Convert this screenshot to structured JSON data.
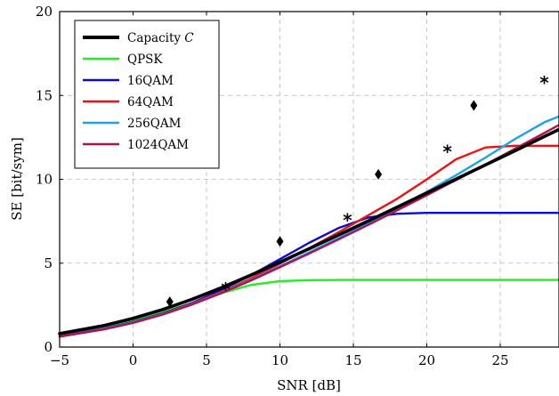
{
  "chart_data": {
    "type": "line",
    "xlabel": "SNR [dB]",
    "ylabel": "SE [bit/sym]",
    "xlim": [
      -5,
      29
    ],
    "ylim": [
      0,
      20
    ],
    "xticks": [
      -5,
      0,
      5,
      10,
      15,
      20,
      25
    ],
    "yticks": [
      0,
      5,
      10,
      15,
      20
    ],
    "grid": true,
    "legend_position": "top-left",
    "series": [
      {
        "name": "Capacity C",
        "color": "#000000",
        "x": [
          -5,
          -2,
          0,
          2,
          4,
          6,
          8,
          10,
          12,
          14,
          16,
          18,
          20,
          22,
          24,
          26,
          28,
          29
        ],
        "y": [
          0.8,
          1.28,
          1.71,
          2.23,
          2.84,
          3.53,
          4.28,
          5.06,
          5.87,
          6.69,
          7.51,
          8.35,
          9.19,
          10.02,
          10.86,
          11.7,
          12.55,
          12.97
        ]
      },
      {
        "name": "QPSK",
        "color": "#22ee22",
        "x": [
          -5,
          -2,
          0,
          2,
          4,
          6,
          8,
          10,
          12,
          14,
          20,
          25,
          29
        ],
        "y": [
          0.78,
          1.22,
          1.62,
          2.1,
          2.62,
          3.21,
          3.7,
          3.93,
          3.99,
          4.0,
          4.0,
          4.0,
          4.0
        ]
      },
      {
        "name": "16QAM",
        "color": "#0a0ad6",
        "x": [
          -5,
          -2,
          0,
          2,
          4,
          6,
          8,
          10,
          12,
          14,
          16,
          18,
          20,
          25,
          29
        ],
        "y": [
          0.66,
          1.1,
          1.5,
          2.0,
          2.62,
          3.4,
          4.27,
          5.24,
          6.22,
          7.1,
          7.72,
          7.95,
          8.0,
          8.0,
          8.0
        ]
      },
      {
        "name": "64QAM",
        "color": "#ee1111",
        "x": [
          -5,
          -2,
          0,
          2,
          4,
          6,
          8,
          10,
          12,
          14,
          16,
          18,
          20,
          22,
          24,
          26,
          29
        ],
        "y": [
          0.64,
          1.08,
          1.47,
          1.97,
          2.58,
          3.28,
          4.08,
          4.98,
          5.9,
          6.85,
          7.85,
          8.85,
          10.0,
          11.2,
          11.9,
          12.0,
          12.0
        ]
      },
      {
        "name": "256QAM",
        "color": "#1aa3e8",
        "x": [
          -5,
          -2,
          0,
          2,
          4,
          6,
          8,
          10,
          12,
          14,
          16,
          18,
          20,
          22,
          24,
          26,
          28,
          29
        ],
        "y": [
          0.63,
          1.07,
          1.46,
          1.95,
          2.55,
          3.24,
          4.0,
          4.82,
          5.65,
          6.5,
          7.4,
          8.3,
          9.25,
          10.25,
          11.3,
          12.4,
          13.4,
          13.75
        ]
      },
      {
        "name": "1024QAM",
        "color": "#b0104f",
        "x": [
          -5,
          -2,
          0,
          2,
          4,
          6,
          8,
          10,
          12,
          14,
          16,
          18,
          20,
          22,
          24,
          26,
          28,
          29
        ],
        "y": [
          0.62,
          1.05,
          1.44,
          1.93,
          2.53,
          3.21,
          3.96,
          4.76,
          5.58,
          6.42,
          7.28,
          8.16,
          9.05,
          9.96,
          10.88,
          11.82,
          12.76,
          13.24
        ]
      }
    ],
    "diamond_markers": [
      {
        "x": 2.5,
        "y": 2.7
      },
      {
        "x": 10,
        "y": 6.3
      },
      {
        "x": 16.7,
        "y": 10.3
      },
      {
        "x": 23.2,
        "y": 14.4
      }
    ],
    "star_markers": [
      {
        "x": 6.3,
        "y": 3.5
      },
      {
        "x": 14.6,
        "y": 7.6
      },
      {
        "x": 21.4,
        "y": 11.7
      },
      {
        "x": 28,
        "y": 15.8
      }
    ]
  },
  "legend": {
    "capacity": "Capacity ",
    "capacity_symbol": "C",
    "qpsk": "QPSK",
    "qam16": "16QAM",
    "qam64": "64QAM",
    "qam256": "256QAM",
    "qam1024": "1024QAM"
  }
}
